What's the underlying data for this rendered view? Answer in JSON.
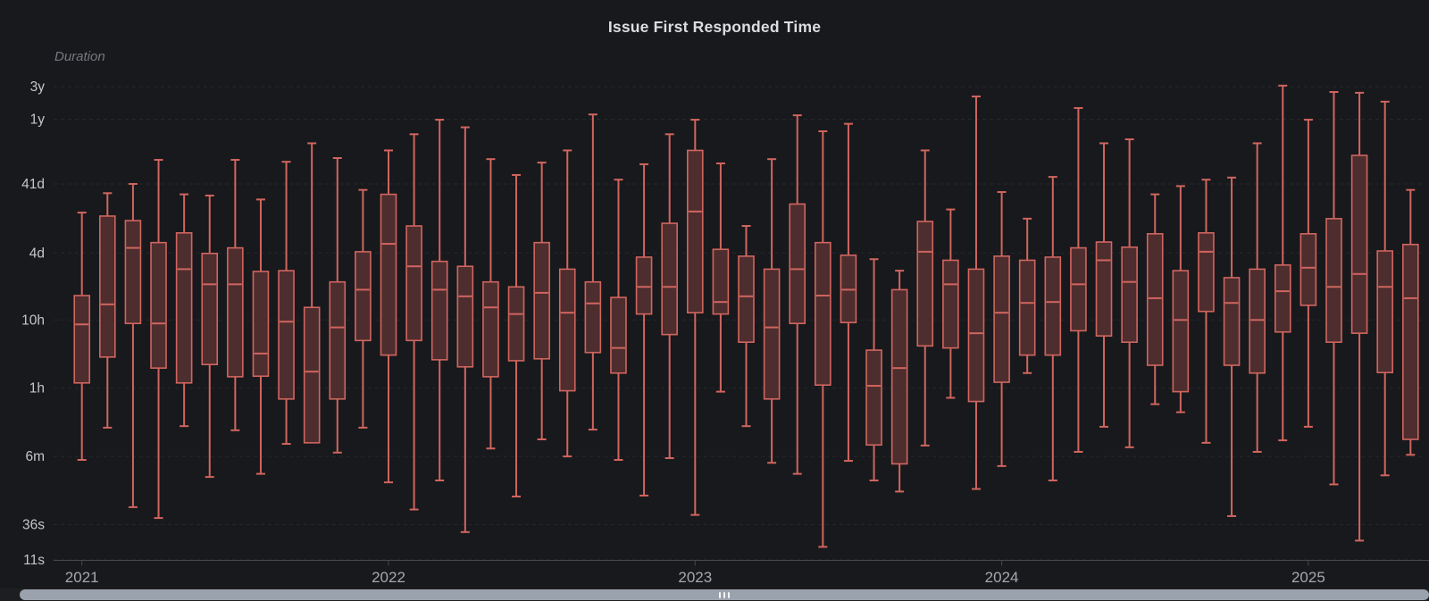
{
  "title": "Issue First Responded Time",
  "y_axis_label": "Duration",
  "chart_data": {
    "type": "boxplot",
    "unit": "seconds",
    "y_scale": "log",
    "grid": "horizontal-dashed",
    "legend": "none",
    "y_ticks": [
      {
        "label": "3y",
        "seconds": 94608000
      },
      {
        "label": "1y",
        "seconds": 31536000
      },
      {
        "label": "41d",
        "seconds": 3542400
      },
      {
        "label": "4d",
        "seconds": 345600
      },
      {
        "label": "10h",
        "seconds": 36000
      },
      {
        "label": "1h",
        "seconds": 3600
      },
      {
        "label": "6m",
        "seconds": 360
      },
      {
        "label": "36s",
        "seconds": 36
      },
      {
        "label": "11s",
        "seconds": 11
      }
    ],
    "x_ticks": [
      {
        "label": "2021",
        "month_index": 0
      },
      {
        "label": "2022",
        "month_index": 12
      },
      {
        "label": "2023",
        "month_index": 24
      },
      {
        "label": "2024",
        "month_index": 36
      },
      {
        "label": "2025",
        "month_index": 48
      }
    ],
    "categories": [
      "2021-01",
      "2021-02",
      "2021-03",
      "2021-04",
      "2021-05",
      "2021-06",
      "2021-07",
      "2021-08",
      "2021-09",
      "2021-10",
      "2021-11",
      "2021-12",
      "2022-01",
      "2022-02",
      "2022-03",
      "2022-04",
      "2022-05",
      "2022-06",
      "2022-07",
      "2022-08",
      "2022-09",
      "2022-10",
      "2022-11",
      "2022-12",
      "2023-01",
      "2023-02",
      "2023-03",
      "2023-04",
      "2023-05",
      "2023-06",
      "2023-07",
      "2023-08",
      "2023-09",
      "2023-10",
      "2023-11",
      "2023-12",
      "2024-01",
      "2024-02",
      "2024-03",
      "2024-04",
      "2024-05",
      "2024-06",
      "2024-07",
      "2024-08",
      "2024-09",
      "2024-10",
      "2024-11",
      "2024-12",
      "2025-01",
      "2025-02",
      "2025-03",
      "2025-04",
      "2025-05"
    ],
    "series": [
      {
        "name": "Issue First Responded Time",
        "value_order": [
          "min",
          "q1",
          "median",
          "q3",
          "max"
        ],
        "values": [
          [
            320,
            4300,
            31000,
            82000,
            1350000
          ],
          [
            950,
            10300,
            61000,
            1200000,
            2600000
          ],
          [
            65,
            32000,
            410000,
            1030000,
            3550000
          ],
          [
            45,
            7100,
            32000,
            490000,
            8000000
          ],
          [
            1000,
            4300,
            200000,
            680000,
            2500000
          ],
          [
            180,
            8000,
            120000,
            340000,
            2400000
          ],
          [
            870,
            5300,
            120000,
            410000,
            8000000
          ],
          [
            200,
            5400,
            11600,
            185000,
            2100000
          ],
          [
            550,
            2500,
            34000,
            190000,
            7500000
          ],
          [
            570,
            570,
            6300,
            55000,
            14000000
          ],
          [
            410,
            2500,
            28000,
            130000,
            8500000
          ],
          [
            950,
            18000,
            100000,
            360000,
            2900000
          ],
          [
            150,
            11000,
            470000,
            2500000,
            11000000
          ],
          [
            60,
            18000,
            220000,
            860000,
            19000000
          ],
          [
            160,
            9400,
            100000,
            260000,
            31000000
          ],
          [
            28,
            7400,
            80000,
            220000,
            24000000
          ],
          [
            470,
            5300,
            55000,
            130000,
            8200000
          ],
          [
            93,
            9100,
            44000,
            110000,
            4800000
          ],
          [
            640,
            9700,
            90000,
            490000,
            7300000
          ],
          [
            360,
            3300,
            46000,
            200000,
            11000000
          ],
          [
            890,
            12000,
            63000,
            130000,
            37000000
          ],
          [
            320,
            6000,
            14000,
            77000,
            4100000
          ],
          [
            96,
            44000,
            110000,
            300000,
            6900000
          ],
          [
            340,
            22000,
            110000,
            940000,
            19000000
          ],
          [
            50,
            46000,
            1400000,
            11000000,
            31000000
          ],
          [
            3200,
            44000,
            66000,
            390000,
            7100000
          ],
          [
            1000,
            17000,
            80000,
            310000,
            860000
          ],
          [
            290,
            2500,
            28000,
            200000,
            8200000
          ],
          [
            200,
            32000,
            200000,
            1800000,
            36000000
          ],
          [
            17,
            4000,
            82000,
            490000,
            21000000
          ],
          [
            310,
            33000,
            100000,
            320000,
            27000000
          ],
          [
            160,
            530,
            3900,
            13000,
            280000
          ],
          [
            110,
            280,
            7100,
            100000,
            190000
          ],
          [
            520,
            15000,
            360000,
            1000000,
            11000000
          ],
          [
            2600,
            14000,
            120000,
            270000,
            1500000
          ],
          [
            120,
            2300,
            23000,
            200000,
            68000000
          ],
          [
            260,
            4400,
            46000,
            310000,
            2700000
          ],
          [
            6000,
            11000,
            64000,
            270000,
            1100000
          ],
          [
            160,
            11000,
            66000,
            300000,
            4500000
          ],
          [
            420,
            25000,
            120000,
            410000,
            46000000
          ],
          [
            980,
            21000,
            270000,
            500000,
            14000000
          ],
          [
            490,
            17000,
            130000,
            420000,
            16000000
          ],
          [
            2100,
            7800,
            75000,
            660000,
            2500000
          ],
          [
            1600,
            3200,
            36000,
            190000,
            3300000
          ],
          [
            570,
            48000,
            360000,
            680000,
            4100000
          ],
          [
            48,
            7800,
            64000,
            150000,
            4400000
          ],
          [
            420,
            6000,
            36000,
            200000,
            14000000
          ],
          [
            620,
            24000,
            95000,
            230000,
            98000000
          ],
          [
            980,
            59000,
            210000,
            660000,
            31000000
          ],
          [
            140,
            17000,
            110000,
            1100000,
            79000000
          ],
          [
            21,
            23000,
            170000,
            9300000,
            77000000
          ],
          [
            190,
            6100,
            110000,
            370000,
            57000000
          ],
          [
            380,
            640,
            75000,
            460000,
            2900000
          ]
        ]
      }
    ],
    "colors": {
      "box_stroke": "#d0655f",
      "box_fill": "#4e2d2e",
      "background": "#18191c",
      "gridline": "rgba(216,216,230,0.08)",
      "axis_line": "#46484d",
      "y_label": "#c4c6ca",
      "x_label": "#a5a8ae"
    }
  },
  "scrollbar": {
    "orientation": "horizontal",
    "thumb_color": "#9aa2ad",
    "grip_dashes": 3
  }
}
